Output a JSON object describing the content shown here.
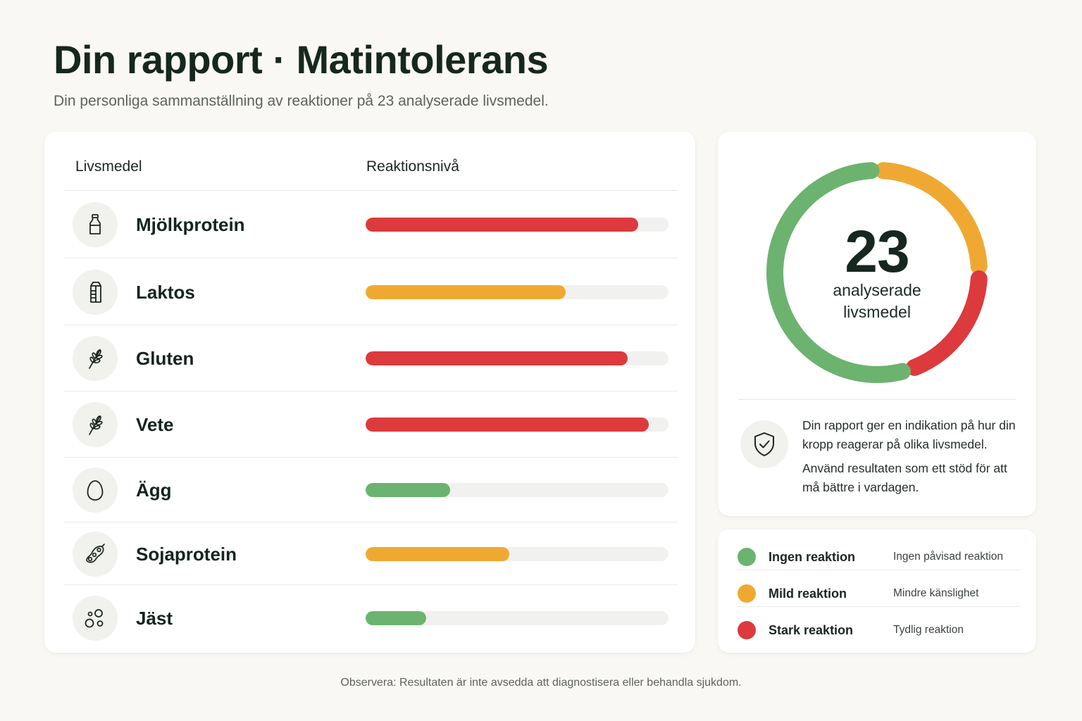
{
  "header": {
    "title": "Din rapport · Matintolerans",
    "subtitle": "Din personliga sammanställning av reaktioner på 23 analyserade livsmedel."
  },
  "table": {
    "col_food": "Livsmedel",
    "col_level": "Reaktionsnivå",
    "rows": [
      {
        "name": "Mjölkprotein",
        "icon": "milk-bottle-icon",
        "level": "strong",
        "fill": 0.9
      },
      {
        "name": "Laktos",
        "icon": "milk-carton-icon",
        "level": "mild",
        "fill": 0.66
      },
      {
        "name": "Gluten",
        "icon": "wheat-icon",
        "level": "strong",
        "fill": 0.865
      },
      {
        "name": "Vete",
        "icon": "wheat-icon",
        "level": "strong",
        "fill": 0.935
      },
      {
        "name": "Ägg",
        "icon": "egg-icon",
        "level": "none",
        "fill": 0.28
      },
      {
        "name": "Sojaprotein",
        "icon": "soybean-icon",
        "level": "mild",
        "fill": 0.475
      },
      {
        "name": "Jäst",
        "icon": "yeast-bubbles-icon",
        "level": "none",
        "fill": 0.2
      }
    ]
  },
  "summary": {
    "count": "23",
    "count_label_line1": "analyserade",
    "count_label_line2": "livsmedel",
    "segments": [
      {
        "level": "mild",
        "fraction": 0.25
      },
      {
        "level": "strong",
        "fraction": 0.2
      },
      {
        "level": "none",
        "fraction": 0.55
      }
    ],
    "info_1": "Din rapport ger en indikation på hur din kropp reagerar på olika livsmedel.",
    "info_2": "Använd resultaten som ett stöd för att må bättre i vardagen."
  },
  "legend": [
    {
      "level": "none",
      "label": "Ingen reaktion",
      "desc": "Ingen påvisad reaktion"
    },
    {
      "level": "mild",
      "label": "Mild reaktion",
      "desc": "Mindre känslighet"
    },
    {
      "level": "strong",
      "label": "Stark reaktion",
      "desc": "Tydlig reaktion"
    }
  ],
  "colors": {
    "none": "#6cb36f",
    "mild": "#efa933",
    "strong": "#dc3a3d"
  },
  "footnote": "Observera: Resultaten är inte avsedda att diagnostisera eller behandla sjukdom."
}
